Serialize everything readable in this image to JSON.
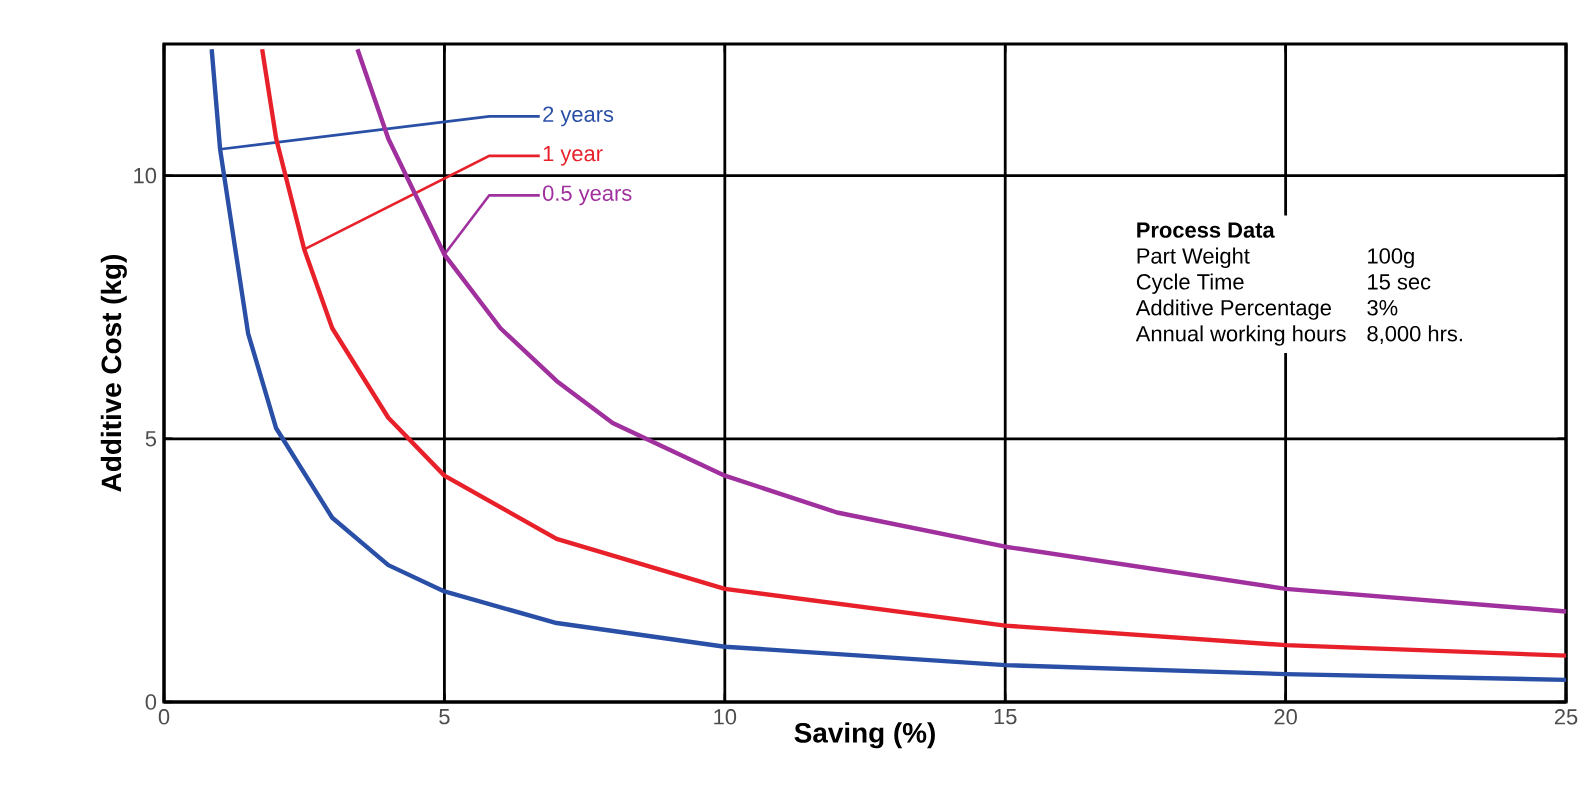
{
  "chart_data": {
    "type": "line",
    "xlabel": "Saving (%)",
    "ylabel": "Additive Cost (kg)",
    "xlim": [
      0,
      25
    ],
    "ylim": [
      0,
      12.5
    ],
    "xticks": [
      0,
      5,
      10,
      15,
      20,
      25
    ],
    "yticks": [
      0,
      5,
      10
    ],
    "grid": true,
    "series": [
      {
        "name": "2 years",
        "color": "#2a4fa6",
        "x": [
          0.85,
          1,
          1.5,
          2,
          3,
          4,
          5,
          7,
          10,
          15,
          20,
          25
        ],
        "values": [
          12.4,
          10.5,
          7,
          5.2,
          3.5,
          2.6,
          2.1,
          1.5,
          1.05,
          0.7,
          0.53,
          0.42
        ]
      },
      {
        "name": "1 year",
        "color": "#e8202a",
        "x": [
          1.75,
          2,
          2.5,
          3,
          4,
          5,
          7,
          10,
          15,
          20,
          25
        ],
        "values": [
          12.4,
          10.7,
          8.6,
          7.1,
          5.4,
          4.3,
          3.1,
          2.15,
          1.45,
          1.08,
          0.88
        ]
      },
      {
        "name": "0.5 years",
        "color": "#a0309e",
        "x": [
          3.45,
          4,
          5,
          6,
          7,
          8,
          10,
          12,
          15,
          20,
          25
        ],
        "values": [
          12.4,
          10.7,
          8.5,
          7.1,
          6.1,
          5.3,
          4.3,
          3.6,
          2.95,
          2.15,
          1.72
        ]
      }
    ],
    "annotations": [
      "Process Data",
      "Part Weight",
      "100g",
      "Cycle Time",
      "15 sec",
      "Additive Percentage",
      "3%",
      "Annual working hours",
      "8,000 hrs."
    ]
  }
}
